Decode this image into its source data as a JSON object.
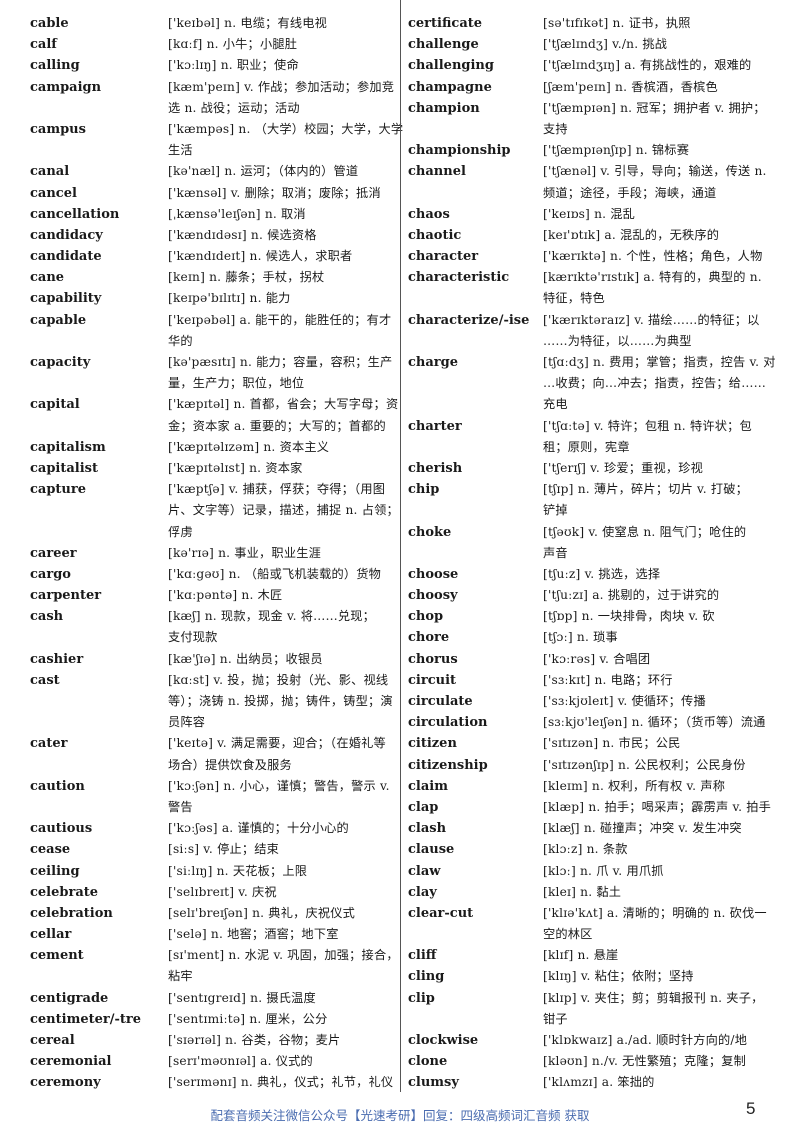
{
  "columns": {
    "left": [
      {
        "word": "cable",
        "def": [
          "['keɪbəl] n. 电缆；有线电视"
        ]
      },
      {
        "word": "calf",
        "def": [
          "[kɑːf] n. 小牛；小腿肚"
        ]
      },
      {
        "word": "calling",
        "def": [
          "['kɔːlɪŋ] n. 职业；使命"
        ]
      },
      {
        "word": "campaign",
        "def": [
          "[kæm'peɪn] v. 作战；参加活动；参加竞",
          "选 n. 战役；运动；活动"
        ]
      },
      {
        "word": "campus",
        "def": [
          "['kæmpəs] n. （大学）校园；大学，大学",
          "生活"
        ]
      },
      {
        "word": "canal",
        "def": [
          "[kə'næl] n. 运河；（体内的）管道"
        ]
      },
      {
        "word": "cancel",
        "def": [
          "['kænsəl] v. 删除；取消；废除；抵消"
        ]
      },
      {
        "word": "cancellation",
        "def": [
          "[ˌkænsə'leɪʃən] n. 取消"
        ]
      },
      {
        "word": "candidacy",
        "def": [
          "['kændɪdəsɪ] n. 候选资格"
        ]
      },
      {
        "word": "candidate",
        "def": [
          "['kændɪdeɪt] n. 候选人，求职者"
        ]
      },
      {
        "word": "cane",
        "def": [
          "[keɪn] n. 藤条；手杖，拐杖"
        ]
      },
      {
        "word": "capability",
        "def": [
          "[keɪpə'bɪlɪtɪ] n. 能力"
        ]
      },
      {
        "word": "capable",
        "def": [
          "['keɪpəbəl] a. 能干的，能胜任的；有才",
          "华的"
        ]
      },
      {
        "word": "capacity",
        "def": [
          "[kə'pæsɪtɪ] n. 能力；容量，容积；生产",
          "量，生产力；职位，地位"
        ]
      },
      {
        "word": "capital",
        "def": [
          "['kæpɪtəl] n. 首都，省会；大写字母；资",
          "金；资本家 a. 重要的；大写的；首都的"
        ]
      },
      {
        "word": "capitalism",
        "def": [
          "['kæpɪtəlɪzəm] n. 资本主义"
        ]
      },
      {
        "word": "capitalist",
        "def": [
          "['kæpɪtəlɪst] n. 资本家"
        ]
      },
      {
        "word": "capture",
        "def": [
          "['kæptʃə] v. 捕获，俘获；夺得；（用图",
          "片、文字等）记录，描述，捕捉 n. 占领；",
          "俘虏"
        ]
      },
      {
        "word": "career",
        "def": [
          "[kə'rɪə] n. 事业，职业生涯"
        ]
      },
      {
        "word": "cargo",
        "def": [
          "['kɑːgəʊ] n. （船或飞机装载的）货物"
        ]
      },
      {
        "word": "carpenter",
        "def": [
          "['kɑːpəntə] n. 木匠"
        ]
      },
      {
        "word": "cash",
        "def": [
          "[kæʃ] n. 现款，现金 v. 将……兑现；",
          "支付现款"
        ]
      },
      {
        "word": "cashier",
        "def": [
          "[kæ'ʃɪə] n. 出纳员；收银员"
        ]
      },
      {
        "word": "cast",
        "def": [
          "[kɑːst] v. 投，抛；投射（光、影、视线",
          "等）；浇铸 n. 投掷，抛；铸件，铸型；演",
          "员阵容"
        ]
      },
      {
        "word": "cater",
        "def": [
          "['keɪtə] v. 满足需要，迎合；（在婚礼等",
          "场合）提供饮食及服务"
        ]
      },
      {
        "word": "caution",
        "def": [
          "['kɔːʃən] n. 小心，谨慎；警告，警示 v.",
          "警告"
        ]
      },
      {
        "word": "cautious",
        "def": [
          "['kɔːʃəs] a. 谨慎的；十分小心的"
        ]
      },
      {
        "word": "cease",
        "def": [
          "[siːs] v. 停止；结束"
        ]
      },
      {
        "word": "ceiling",
        "def": [
          "['siːlɪŋ] n. 天花板；上限"
        ]
      },
      {
        "word": "celebrate",
        "def": [
          "['selɪbreɪt] v. 庆祝"
        ]
      },
      {
        "word": "celebration",
        "def": [
          "[selɪ'breɪʃən] n. 典礼，庆祝仪式"
        ]
      },
      {
        "word": "cellar",
        "def": [
          "['selə] n. 地窖；酒窖；地下室"
        ]
      },
      {
        "word": "cement",
        "def": [
          "[sɪ'ment] n. 水泥 v. 巩固，加强；接合，",
          "粘牢"
        ]
      },
      {
        "word": "centigrade",
        "def": [
          "['sentɪgreɪd] n. 摄氏温度"
        ]
      },
      {
        "word": "centimeter/-tre",
        "def": [
          "['sentɪmiːtə] n. 厘米，公分"
        ]
      },
      {
        "word": "cereal",
        "def": [
          "['sɪərɪəl] n. 谷类，谷物；麦片"
        ]
      },
      {
        "word": "ceremonial",
        "def": [
          "[serɪ'məʊnɪəl] a. 仪式的"
        ]
      },
      {
        "word": "ceremony",
        "def": [
          "['serɪmənɪ] n. 典礼，仪式；礼节，礼仪"
        ]
      }
    ],
    "right": [
      {
        "word": "certificate",
        "def": [
          "[sə'tɪfɪkət] n. 证书，执照"
        ]
      },
      {
        "word": "challenge",
        "def": [
          "['tʃælɪndʒ] v./n. 挑战"
        ]
      },
      {
        "word": "challenging",
        "def": [
          "['tʃælɪndʒɪŋ] a. 有挑战性的，艰难的"
        ]
      },
      {
        "word": "champagne",
        "def": [
          "[ʃæm'peɪn] n. 香槟酒，香槟色"
        ]
      },
      {
        "word": "champion",
        "def": [
          "['tʃæmpɪən] n. 冠军；拥护者 v. 拥护；",
          "支持"
        ]
      },
      {
        "word": "championship",
        "def": [
          "['tʃæmpɪənʃɪp] n. 锦标赛"
        ]
      },
      {
        "word": "channel",
        "def": [
          "['tʃænəl] v. 引导，导向；输送，传送 n.",
          "频道；途径，手段；海峡，通道"
        ]
      },
      {
        "word": "chaos",
        "def": [
          "['keɪɒs] n. 混乱"
        ]
      },
      {
        "word": "chaotic",
        "def": [
          "[keɪ'ɒtɪk] a. 混乱的，无秩序的"
        ]
      },
      {
        "word": "character",
        "def": [
          "['kærɪktə] n. 个性，性格；角色，人物"
        ]
      },
      {
        "word": "characteristic",
        "def": [
          "[kærɪktə'rɪstɪk] a. 特有的，典型的 n.",
          "特征，特色"
        ]
      },
      {
        "word": "characterize/-ise",
        "def": [
          "['kærɪktəraɪz] v. 描绘……的特征；以",
          "……为特征，以……为典型"
        ]
      },
      {
        "word": "charge",
        "def": [
          "[tʃɑːdʒ] n. 费用；掌管；指责，控告 v. 对",
          "…收费；向…冲去；指责，控告；给……",
          "充电"
        ]
      },
      {
        "word": "charter",
        "def": [
          "['tʃɑːtə] v. 特许；包租 n. 特许状；包",
          "租；原则，宪章"
        ]
      },
      {
        "word": "cherish",
        "def": [
          "['tʃerɪʃ] v. 珍爱；重视，珍视"
        ]
      },
      {
        "word": "chip",
        "def": [
          "[tʃɪp] n. 薄片，碎片；切片 v. 打破；",
          "铲掉"
        ]
      },
      {
        "word": "choke",
        "def": [
          "[tʃəʊk] v. 使窒息 n. 阻气门；呛住的",
          "声音"
        ]
      },
      {
        "word": "choose",
        "def": [
          "[tʃuːz] v. 挑选，选择"
        ]
      },
      {
        "word": "choosy",
        "def": [
          "['tʃuːzɪ] a. 挑剔的，过于讲究的"
        ]
      },
      {
        "word": "chop",
        "def": [
          "[tʃɒp] n. 一块排骨，肉块 v. 砍"
        ]
      },
      {
        "word": "chore",
        "def": [
          "[tʃɔː] n. 琐事"
        ]
      },
      {
        "word": "chorus",
        "def": [
          "['kɔːrəs] v. 合唱团"
        ]
      },
      {
        "word": "circuit",
        "def": [
          "['sɜːkɪt] n. 电路；环行"
        ]
      },
      {
        "word": "circulate",
        "def": [
          "['sɜːkjʊleɪt] v. 使循环；传播"
        ]
      },
      {
        "word": "circulation",
        "def": [
          "[sɜːkjʊ'leɪʃən] n. 循环；（货币等）流通"
        ]
      },
      {
        "word": "citizen",
        "def": [
          "['sɪtɪzən] n. 市民；公民"
        ]
      },
      {
        "word": "citizenship",
        "def": [
          "['sɪtɪzənʃɪp] n. 公民权利；公民身份"
        ]
      },
      {
        "word": "claim",
        "def": [
          "[kleɪm] n. 权利，所有权 v. 声称"
        ]
      },
      {
        "word": "clap",
        "def": [
          "[klæp] n. 拍手；喝采声；霹雳声 v. 拍手"
        ]
      },
      {
        "word": "clash",
        "def": [
          "[klæʃ] n. 碰撞声；冲突 v. 发生冲突"
        ]
      },
      {
        "word": "clause",
        "def": [
          "[klɔːz] n. 条款"
        ]
      },
      {
        "word": "claw",
        "def": [
          "[klɔː] n. 爪 v. 用爪抓"
        ]
      },
      {
        "word": "clay",
        "def": [
          "[kleɪ] n. 黏土"
        ]
      },
      {
        "word": "clear-cut",
        "def": [
          "['klɪə'kʌt] a. 清晰的；明确的 n. 砍伐一",
          "空的林区"
        ]
      },
      {
        "word": "cliff",
        "def": [
          "[klɪf] n. 悬崖"
        ]
      },
      {
        "word": "cling",
        "def": [
          "[klɪŋ] v. 粘住；依附；坚持"
        ]
      },
      {
        "word": "clip",
        "def": [
          "[klɪp] v. 夹住；剪；剪辑报刊 n. 夹子，",
          "钳子"
        ]
      },
      {
        "word": "clockwise",
        "def": [
          "['klɒkwaɪz] a./ad. 顺时针方向的/地"
        ]
      },
      {
        "word": "clone",
        "def": [
          "[kləʊn] n./v. 无性繁殖；克隆；复制"
        ]
      },
      {
        "word": "clumsy",
        "def": [
          "['klʌmzɪ] a. 笨拙的"
        ]
      }
    ]
  },
  "footer": {
    "text": "配套音频关注微信公众号【光速考研】回复：四级高频词汇音频 获取",
    "page_number": "5",
    "color": "#4a6cb0"
  }
}
